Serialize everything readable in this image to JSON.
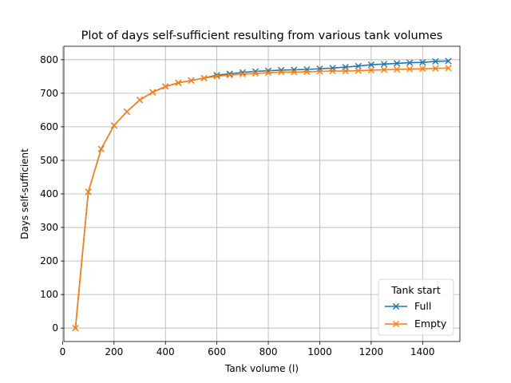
{
  "chart_data": {
    "type": "line",
    "title": "Plot of days self-sufficient resulting from various tank volumes",
    "xlabel": "Tank volume (l)",
    "ylabel": "Days self-sufficient",
    "xlim": [
      5,
      1545
    ],
    "ylim": [
      -40,
      840
    ],
    "xticks": [
      0,
      200,
      400,
      600,
      800,
      1000,
      1200,
      1400
    ],
    "yticks": [
      0,
      100,
      200,
      300,
      400,
      500,
      600,
      700,
      800
    ],
    "grid": true,
    "legend": {
      "title": "Tank start",
      "position": "lower-right"
    },
    "marker": "x",
    "x": [
      50,
      100,
      150,
      200,
      250,
      300,
      350,
      400,
      450,
      500,
      550,
      600,
      650,
      700,
      750,
      800,
      850,
      900,
      950,
      1000,
      1050,
      1100,
      1150,
      1200,
      1250,
      1300,
      1350,
      1400,
      1450,
      1500
    ],
    "series": [
      {
        "name": "Full",
        "color": "#1f77b4",
        "values": [
          0,
          406,
          534,
          604,
          645,
          680,
          703,
          720,
          731,
          738,
          745,
          754,
          758,
          762,
          765,
          767,
          769,
          770,
          771,
          773,
          775,
          778,
          781,
          785,
          787,
          789,
          791,
          792,
          795,
          796
        ]
      },
      {
        "name": "Empty",
        "color": "#ff7f0e",
        "values": [
          0,
          406,
          534,
          604,
          645,
          680,
          703,
          720,
          731,
          738,
          745,
          751,
          754,
          757,
          759,
          761,
          763,
          763,
          764,
          765,
          766,
          766,
          767,
          769,
          770,
          771,
          772,
          773,
          774,
          775
        ]
      }
    ]
  }
}
